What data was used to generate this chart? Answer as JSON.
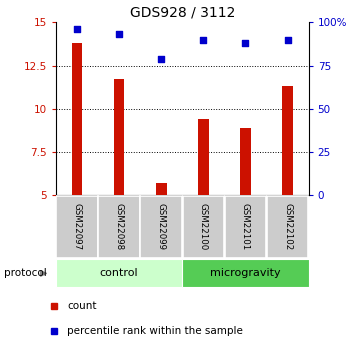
{
  "title": "GDS928 / 3112",
  "samples": [
    "GSM22097",
    "GSM22098",
    "GSM22099",
    "GSM22100",
    "GSM22101",
    "GSM22102"
  ],
  "count_values": [
    13.8,
    11.7,
    5.7,
    9.4,
    8.9,
    11.3
  ],
  "percentile_values": [
    96,
    93,
    79,
    90,
    88,
    90
  ],
  "ylim_left": [
    5,
    15
  ],
  "ylim_right": [
    0,
    100
  ],
  "yticks_left": [
    5,
    7.5,
    10,
    12.5,
    15
  ],
  "yticks_right": [
    0,
    25,
    50,
    75,
    100
  ],
  "ytick_labels_left": [
    "5",
    "7.5",
    "10",
    "12.5",
    "15"
  ],
  "ytick_labels_right": [
    "0",
    "25",
    "50",
    "75",
    "100%"
  ],
  "dotted_lines": [
    7.5,
    10,
    12.5
  ],
  "bar_color": "#cc1100",
  "scatter_color": "#0000cc",
  "ctrl_n": 3,
  "micro_n": 3,
  "control_color": "#ccffcc",
  "microgravity_color": "#55cc55",
  "protocol_label": "protocol",
  "control_label": "control",
  "microgravity_label": "microgravity",
  "legend_count_label": "count",
  "legend_percentile_label": "percentile rank within the sample",
  "sample_box_color": "#cccccc",
  "title_fontsize": 10,
  "tick_fontsize": 7.5,
  "label_fontsize": 7.5,
  "bar_width": 0.25
}
